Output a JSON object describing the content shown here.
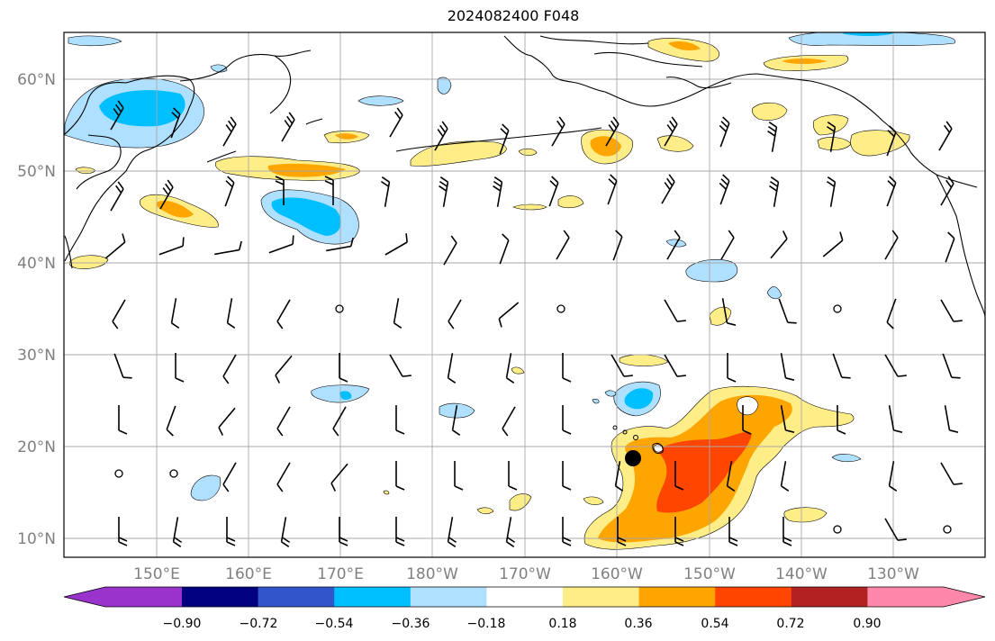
{
  "title": "2024082400 F048",
  "map": {
    "lat_labels": [
      "60°N",
      "50°N",
      "40°N",
      "30°N",
      "20°N",
      "10°N"
    ],
    "lon_labels": [
      "150°E",
      "160°E",
      "170°E",
      "180°W",
      "170°W",
      "160°W",
      "150°W",
      "140°W",
      "130°W"
    ],
    "marker": {
      "name": "storm-center",
      "lat": 19,
      "lon": -158
    }
  },
  "colorbar": {
    "labels": [
      "−0.90",
      "−0.72",
      "−0.54",
      "−0.36",
      "−0.18",
      "0.18",
      "0.36",
      "0.54",
      "0.72",
      "0.90"
    ],
    "colors": [
      "#9933cc",
      "#000080",
      "#3355cc",
      "#00bfff",
      "#b0e0ff",
      "#ffffff",
      "#ffee88",
      "#ffa500",
      "#ff4500",
      "#b22222",
      "#ff88aa"
    ]
  },
  "colors": {
    "pos1": "#ffee88",
    "pos2": "#ffa500",
    "pos3": "#ff4500",
    "neg1": "#b0e0ff",
    "neg2": "#00bfff"
  }
}
